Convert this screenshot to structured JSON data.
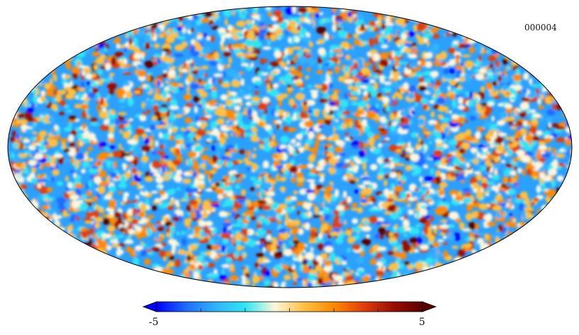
{
  "map": {
    "id_label": "000004",
    "projection": "mollweide",
    "colormap": [
      "#0000ff",
      "#1e6cff",
      "#2fb4ff",
      "#2ee6f2",
      "#fdf6dc",
      "#ffc040",
      "#ff8a00",
      "#e0400a",
      "#9a0e06",
      "#5a0000"
    ],
    "outline_color": "#000000"
  },
  "colorbar": {
    "min_label": "-5",
    "max_label": "5",
    "min": -5,
    "max": 5,
    "ticks": [
      -5,
      -3.33,
      -1.67,
      0,
      1.67,
      3.33,
      5
    ]
  }
}
